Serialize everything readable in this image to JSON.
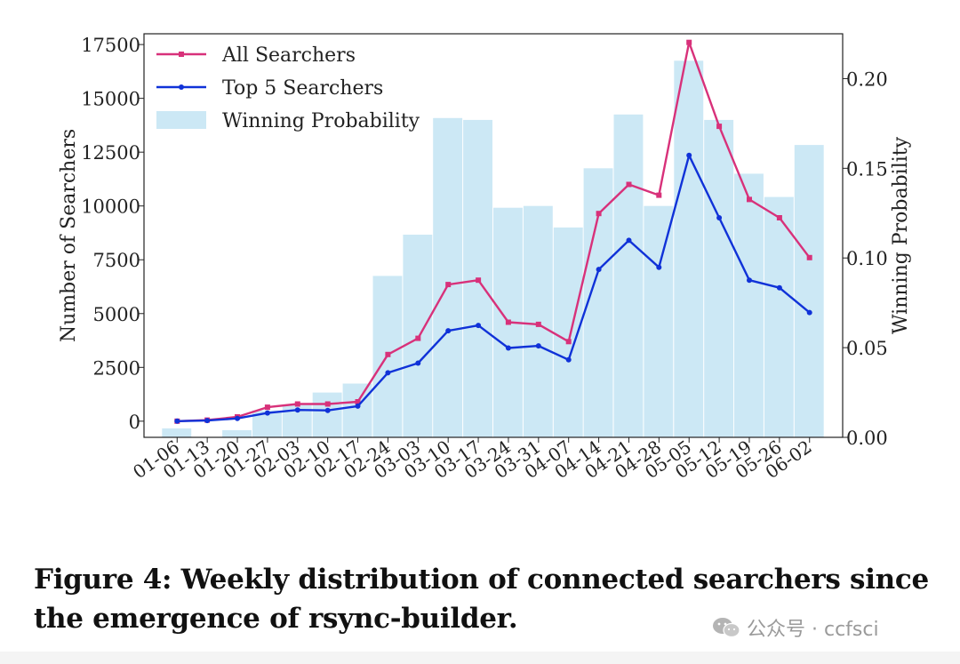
{
  "chart_data": {
    "type": "bar+line",
    "categories": [
      "01-06",
      "01-13",
      "01-20",
      "01-27",
      "02-03",
      "02-10",
      "02-17",
      "02-24",
      "03-03",
      "03-10",
      "03-17",
      "03-24",
      "03-31",
      "04-07",
      "04-14",
      "04-21",
      "04-28",
      "05-05",
      "05-12",
      "05-19",
      "05-26",
      "06-02"
    ],
    "left_axis": {
      "label": "Number of Searchers",
      "ylim": [
        -750,
        18000
      ],
      "ticks": [
        0,
        2500,
        5000,
        7500,
        10000,
        12500,
        15000,
        17500
      ],
      "tick_labels": [
        "0",
        "2500",
        "5000",
        "7500",
        "10000",
        "12500",
        "15000",
        "17500"
      ]
    },
    "right_axis": {
      "label": "Winning Probability",
      "ylim": [
        0,
        0.225
      ],
      "ticks": [
        0.0,
        0.05,
        0.1,
        0.15,
        0.2
      ],
      "tick_labels": [
        "0.00",
        "0.05",
        "0.10",
        "0.15",
        "0.20"
      ]
    },
    "series": [
      {
        "name": "All Searchers",
        "kind": "line",
        "axis": "left",
        "color": "#d8317a",
        "values": [
          0,
          50,
          200,
          650,
          800,
          800,
          900,
          3100,
          3850,
          6350,
          6550,
          4600,
          4500,
          3700,
          9650,
          11000,
          10500,
          17600,
          13700,
          10300,
          9450,
          7600
        ]
      },
      {
        "name": "Top 5 Searchers",
        "kind": "line",
        "axis": "left",
        "color": "#1032d8",
        "values": [
          0,
          30,
          130,
          380,
          520,
          500,
          700,
          2250,
          2700,
          4200,
          4450,
          3400,
          3500,
          2850,
          7050,
          8400,
          7150,
          12350,
          9450,
          6550,
          6200,
          5050
        ]
      },
      {
        "name": "Winning Probability",
        "kind": "bar",
        "axis": "right",
        "color": "#cce8f5",
        "values": [
          0.005,
          0.0,
          0.004,
          0.015,
          0.018,
          0.025,
          0.03,
          0.09,
          0.113,
          0.178,
          0.177,
          0.128,
          0.129,
          0.117,
          0.15,
          0.18,
          0.129,
          0.21,
          0.177,
          0.147,
          0.134,
          0.163
        ]
      }
    ],
    "legend": {
      "position": "top-left",
      "items": [
        "All Searchers",
        "Top 5 Searchers",
        "Winning Probability"
      ]
    },
    "grid": false
  },
  "caption": {
    "line1": "Figure 4: Weekly distribution of connected searchers since",
    "line2": "the emergence of rsync-builder."
  },
  "watermark": {
    "text": "公众号 · ccfsci",
    "icon": "wechat-icon"
  }
}
